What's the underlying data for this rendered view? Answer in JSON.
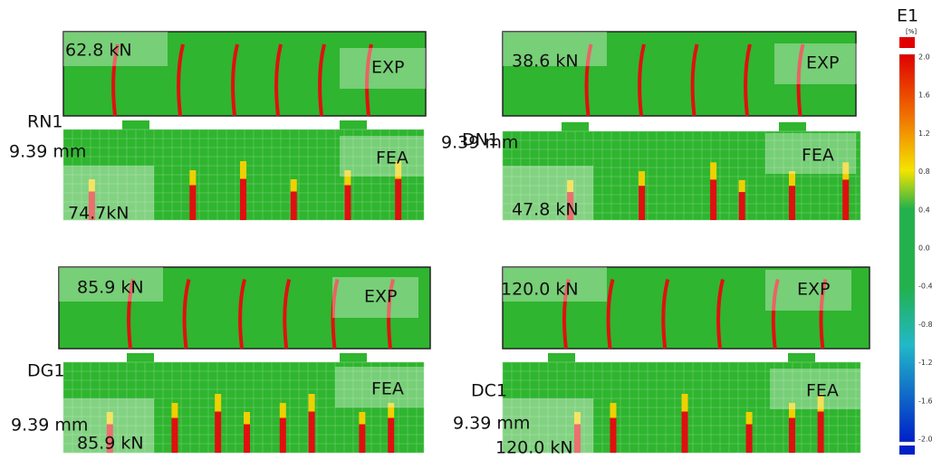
{
  "panels": [
    {
      "id": "RN1",
      "displacement": "9.39 mm",
      "exp_label": "EXP",
      "exp_load": "62.8 kN",
      "fea_label": "FEA",
      "fea_load": "74.7kN"
    },
    {
      "id": "DN1",
      "displacement": "9.39 mm",
      "exp_label": "EXP",
      "exp_load": "38.6 kN",
      "fea_label": "FEA",
      "fea_load": "47.8 kN"
    },
    {
      "id": "DG1",
      "displacement": "9.39 mm",
      "exp_label": "EXP",
      "exp_load": "85.9 kN",
      "fea_label": "FEA",
      "fea_load": "85.9 kN"
    },
    {
      "id": "DC1",
      "displacement": "9.39 mm",
      "exp_label": "EXP",
      "exp_load": "120.0 kN",
      "fea_label": "FEA",
      "fea_load": "120.0 kN"
    }
  ],
  "colorbar": {
    "title": "E1",
    "unit": "[%]",
    "ticks": [
      "2.0",
      "1.6",
      "1.2",
      "0.8",
      "0.4",
      "0.0",
      "-0.4",
      "-0.8",
      "-1.2",
      "-1.6",
      "-2.0"
    ]
  }
}
